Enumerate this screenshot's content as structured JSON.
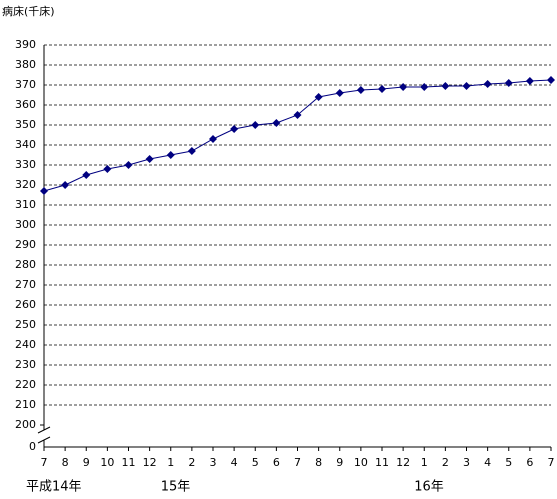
{
  "chart_data": {
    "type": "line",
    "y_label": "病床(千床)",
    "categories": [
      "7",
      "8",
      "9",
      "10",
      "11",
      "12",
      "1",
      "2",
      "3",
      "4",
      "5",
      "6",
      "7",
      "8",
      "9",
      "10",
      "11",
      "12",
      "1",
      "2",
      "3",
      "4",
      "5",
      "6",
      "7"
    ],
    "years": [
      "平成14年",
      null,
      null,
      null,
      null,
      null,
      "15年",
      null,
      null,
      null,
      null,
      null,
      null,
      null,
      null,
      null,
      null,
      null,
      "16年",
      null,
      null,
      null,
      null,
      null,
      null
    ],
    "series": [
      {
        "color": "#000080",
        "values": [
          317,
          320,
          325,
          328,
          330,
          333,
          335,
          337,
          343,
          348,
          350,
          351,
          355,
          364,
          366,
          367.5,
          368,
          369,
          369,
          369.5,
          369.5,
          370.5,
          371,
          372,
          372.5
        ]
      }
    ],
    "ylim": [
      200,
      390
    ],
    "yticks": [
      200,
      210,
      220,
      230,
      240,
      250,
      260,
      270,
      280,
      290,
      300,
      310,
      320,
      330,
      340,
      350,
      360,
      370,
      380,
      390
    ],
    "axis_break": {
      "label": 0
    },
    "grid": true
  }
}
